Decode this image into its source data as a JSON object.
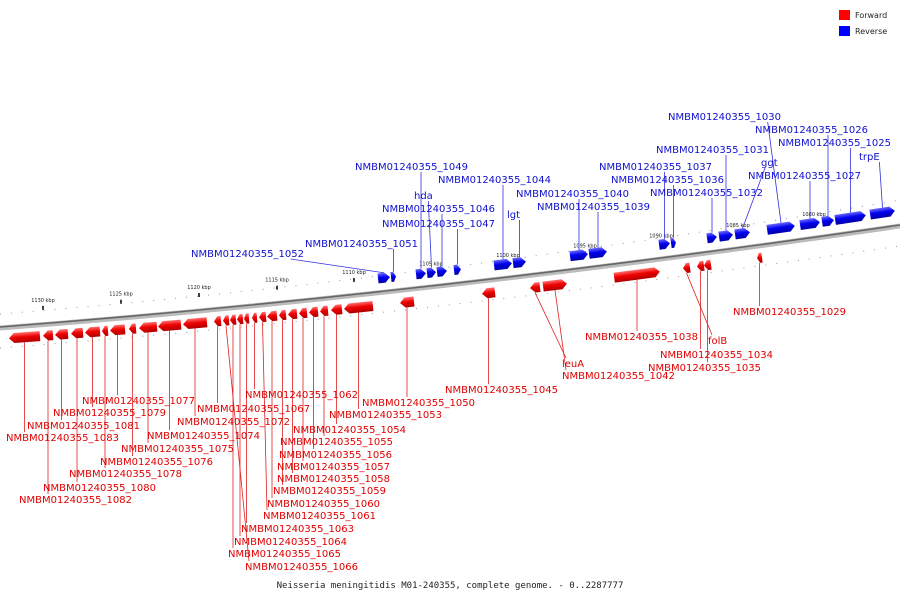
{
  "caption": "Neisseria meningitidis M01-240355, complete genome. - 0..2287777",
  "legend": {
    "forward_label": "Forward",
    "reverse_label": "Reverse",
    "forward_color": "#ff0000",
    "reverse_color": "#0000ff"
  },
  "scale": {
    "ticks": [
      "1130 kbp",
      "1125 kbp",
      "1120 kbp",
      "1115 kbp",
      "1110 kbp",
      "1105 kbp",
      "1100 kbp",
      "1095 kbp",
      "1090 kbp",
      "1085 kbp",
      "1080 kbp"
    ]
  },
  "reverse_genes": [
    "NMBM01240355_1052",
    "NMBM01240355_1051",
    "NMBM01240355_1049",
    "hda",
    "NMBM01240355_1046",
    "NMBM01240355_1047",
    "NMBM01240355_1044",
    "lgt",
    "NMBM01240355_1040",
    "NMBM01240355_1039",
    "NMBM01240355_1037",
    "NMBM01240355_1036",
    "NMBM01240355_1032",
    "NMBM01240355_1031",
    "ggt",
    "NMBM01240355_1030",
    "NMBM01240355_1027",
    "NMBM01240355_1026",
    "NMBM01240355_1025",
    "trpE"
  ],
  "forward_genes": [
    "NMBM01240355_1083",
    "NMBM01240355_1082",
    "NMBM01240355_1081",
    "NMBM01240355_1080",
    "NMBM01240355_1079",
    "NMBM01240355_1078",
    "NMBM01240355_1077",
    "NMBM01240355_1076",
    "NMBM01240355_1075",
    "NMBM01240355_1074",
    "NMBM01240355_1072",
    "NMBM01240355_1067",
    "NMBM01240355_1066",
    "NMBM01240355_1065",
    "NMBM01240355_1064",
    "NMBM01240355_1063",
    "NMBM01240355_1062",
    "NMBM01240355_1061",
    "NMBM01240355_1060",
    "NMBM01240355_1059",
    "NMBM01240355_1058",
    "NMBM01240355_1057",
    "NMBM01240355_1056",
    "NMBM01240355_1055",
    "NMBM01240355_1054",
    "NMBM01240355_1053",
    "NMBM01240355_1050",
    "NMBM01240355_1045",
    "leuA",
    "NMBM01240355_1042",
    "NMBM01240355_1038",
    "folB",
    "NMBM01240355_1034",
    "NMBM01240355_1035",
    "NMBM01240355_1029"
  ]
}
